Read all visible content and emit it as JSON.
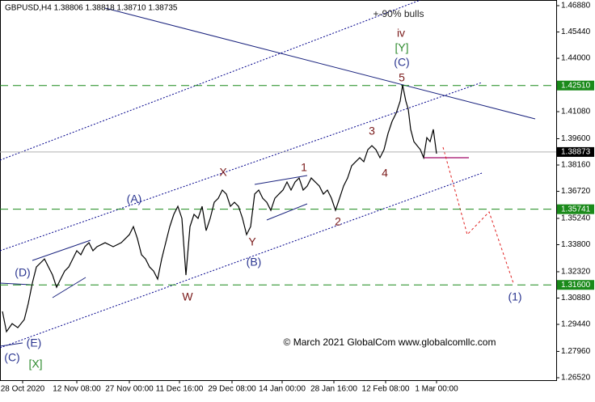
{
  "chart_data": {
    "type": "line",
    "title": "GBPUSD,H4  1.38806 1.38818 1.38710 1.38735",
    "footer": "© March 2021 GlobalCom www.globalcomllc.com",
    "color": "#000000",
    "x": [
      3,
      8,
      15,
      22,
      30,
      35,
      40,
      45,
      50,
      55,
      60,
      65,
      70,
      75,
      80,
      85,
      90,
      95,
      100,
      105,
      110,
      115,
      120,
      130,
      140,
      150,
      160,
      165,
      170,
      175,
      180,
      185,
      190,
      195,
      200,
      205,
      210,
      215,
      220,
      225,
      230,
      235,
      240,
      245,
      250,
      255,
      260,
      265,
      270,
      275,
      280,
      285,
      290,
      295,
      300,
      305,
      310,
      315,
      320,
      325,
      330,
      335,
      340,
      345,
      350,
      355,
      360,
      365,
      370,
      375,
      380,
      385,
      390,
      395,
      400,
      405,
      410,
      415,
      420,
      425,
      430,
      435,
      440,
      445,
      450,
      455,
      460,
      465,
      470,
      475,
      480,
      485,
      490,
      495,
      498,
      502,
      505,
      508,
      512,
      516,
      520,
      524,
      528,
      532,
      536,
      540
    ],
    "values": [
      1.3015,
      1.2904,
      1.2948,
      1.2926,
      1.297,
      1.3059,
      1.317,
      1.3258,
      1.328,
      1.3302,
      1.3258,
      1.3214,
      1.3147,
      1.3192,
      1.3236,
      1.3258,
      1.3302,
      1.3347,
      1.3325,
      1.3369,
      1.3391,
      1.3347,
      1.3369,
      1.3391,
      1.3369,
      1.3391,
      1.3435,
      1.3479,
      1.3413,
      1.3325,
      1.3302,
      1.3258,
      1.3236,
      1.3192,
      1.3302,
      1.3391,
      1.3479,
      1.3546,
      1.359,
      1.3524,
      1.3214,
      1.3479,
      1.3546,
      1.3524,
      1.359,
      1.3457,
      1.3524,
      1.3612,
      1.3634,
      1.3679,
      1.3657,
      1.359,
      1.3612,
      1.359,
      1.3524,
      1.3435,
      1.3479,
      1.3657,
      1.3679,
      1.3634,
      1.3612,
      1.3568,
      1.3634,
      1.3657,
      1.3679,
      1.3723,
      1.3679,
      1.3723,
      1.3745,
      1.3679,
      1.3701,
      1.3745,
      1.3723,
      1.3701,
      1.3657,
      1.3679,
      1.3634,
      1.3568,
      1.3634,
      1.3701,
      1.3745,
      1.3812,
      1.3834,
      1.3856,
      1.3834,
      1.39,
      1.3922,
      1.39,
      1.3856,
      1.39,
      1.3989,
      1.4055,
      1.4099,
      1.4166,
      1.4254,
      1.4166,
      1.4121,
      1.4011,
      1.3944,
      1.3922,
      1.39,
      1.3856,
      1.3966,
      1.3944,
      1.4011,
      1.3878
    ],
    "xlim": [
      0,
      688
    ],
    "xticks": [
      {
        "value": 28,
        "label": "28 Oct 2020"
      },
      {
        "value": 95,
        "label": "12 Nov 08:00"
      },
      {
        "value": 160,
        "label": "27 Nov 00:00"
      },
      {
        "value": 222,
        "label": "11 Dec 16:00"
      },
      {
        "value": 287,
        "label": "29 Dec 08:00"
      },
      {
        "value": 349,
        "label": "14 Jan 00:00"
      },
      {
        "value": 413,
        "label": "28 Jan 16:00"
      },
      {
        "value": 477,
        "label": "12 Feb 08:00"
      },
      {
        "value": 540,
        "label": "1 Mar 00:00"
      }
    ],
    "ylim": [
      1.2652,
      1.4688
    ],
    "yticks": [
      {
        "value": 1.4688,
        "label": "1.46880"
      },
      {
        "value": 1.4544,
        "label": "1.45440"
      },
      {
        "value": 1.44,
        "label": "1.44000"
      },
      {
        "value": 1.4108,
        "label": "1.41080"
      },
      {
        "value": 1.396,
        "label": "1.39600"
      },
      {
        "value": 1.3816,
        "label": "1.38160"
      },
      {
        "value": 1.3672,
        "label": "1.36720"
      },
      {
        "value": 1.3524,
        "label": "1.35240"
      },
      {
        "value": 1.338,
        "label": "1.33800"
      },
      {
        "value": 1.3232,
        "label": "1.32320"
      },
      {
        "value": 1.3088,
        "label": "1.30880"
      },
      {
        "value": 1.2944,
        "label": "1.29440"
      },
      {
        "value": 1.2796,
        "label": "1.27960"
      },
      {
        "value": 1.2652,
        "label": "1.26520"
      }
    ],
    "levels": [
      {
        "value": 1.4251,
        "label": "1.42510"
      },
      {
        "value": 1.35741,
        "label": "1.35741"
      },
      {
        "value": 1.316,
        "label": "1.31600"
      }
    ],
    "level_color": "#1a8a1a",
    "current_price": {
      "value": 1.38873,
      "label": "1.38873"
    },
    "annotations": [
      "+-90% bulls",
      "iv",
      "[Y]",
      "(C)",
      "5",
      "3",
      "4",
      "1",
      "X",
      "2",
      "(A)",
      "Y",
      "(B)",
      "W",
      "(D)",
      "(E)",
      "(C)",
      "[X]",
      "(1)"
    ]
  }
}
